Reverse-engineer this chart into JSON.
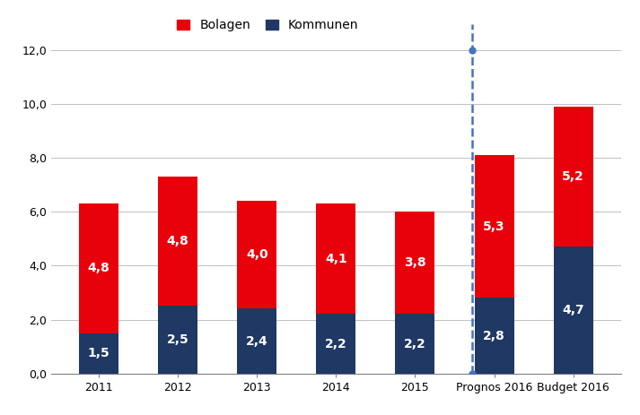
{
  "categories": [
    "2011",
    "2012",
    "2013",
    "2014",
    "2015",
    "Prognos 2016",
    "Budget 2016"
  ],
  "kommunen": [
    1.5,
    2.5,
    2.4,
    2.2,
    2.2,
    2.8,
    4.7
  ],
  "bolagen": [
    4.8,
    4.8,
    4.0,
    4.1,
    3.8,
    5.3,
    5.2
  ],
  "kommunen_color": "#1F3864",
  "bolagen_color": "#E8000B",
  "bar_width": 0.5,
  "ylim": [
    0,
    12.0
  ],
  "yticks": [
    0.0,
    2.0,
    4.0,
    6.0,
    8.0,
    10.0,
    12.0
  ],
  "ytick_labels": [
    "0,0",
    "2,0",
    "4,0",
    "6,0",
    "8,0",
    "10,0",
    "12,0"
  ],
  "dashed_line_x": 4.72,
  "dashed_line_color": "#4472C4",
  "legend_labels": [
    "Bolagen",
    "Kommunen"
  ],
  "legend_colors": [
    "#E8000B",
    "#1F3864"
  ],
  "font_size_labels": 10,
  "font_size_ticks": 9,
  "font_size_legend": 10,
  "grid_color": "#C0C0C0",
  "background_color": "#FFFFFF"
}
